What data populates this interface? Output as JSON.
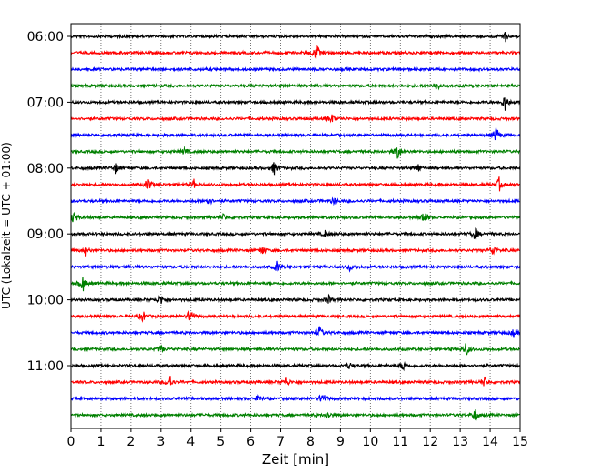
{
  "chart_data": {
    "type": "line",
    "title": "",
    "xlabel": "Zeit  [min]",
    "ylabel": "UTC (Lokalzeit = UTC + 01:00)",
    "xlim": [
      0,
      15
    ],
    "x_ticks": [
      "0",
      "1",
      "2",
      "3",
      "4",
      "5",
      "6",
      "7",
      "8",
      "9",
      "10",
      "11",
      "12",
      "13",
      "14",
      "15"
    ],
    "y_tick_labels": [
      "06:00",
      "07:00",
      "08:00",
      "09:00",
      "10:00",
      "11:00"
    ],
    "grid": "vertical-dotted",
    "trace_interval_min": 15,
    "trace_colors": [
      "#000000",
      "#ff0000",
      "#0000ff",
      "#008000"
    ],
    "traces": [
      {
        "start": "06:00",
        "color": "#000000",
        "events": [
          [
            14.5,
            6
          ]
        ]
      },
      {
        "start": "06:15",
        "color": "#ff0000",
        "events": [
          [
            8.2,
            10
          ]
        ]
      },
      {
        "start": "06:30",
        "color": "#0000ff",
        "events": []
      },
      {
        "start": "06:45",
        "color": "#008000",
        "events": [
          [
            12.2,
            6
          ]
        ]
      },
      {
        "start": "07:00",
        "color": "#000000",
        "events": [
          [
            14.5,
            10
          ]
        ]
      },
      {
        "start": "07:15",
        "color": "#ff0000",
        "events": [
          [
            8.7,
            6
          ]
        ]
      },
      {
        "start": "07:30",
        "color": "#0000ff",
        "events": [
          [
            14.2,
            9
          ]
        ]
      },
      {
        "start": "07:45",
        "color": "#008000",
        "events": [
          [
            10.9,
            10
          ],
          [
            3.8,
            5
          ]
        ]
      },
      {
        "start": "08:00",
        "color": "#000000",
        "events": [
          [
            6.8,
            9
          ],
          [
            1.5,
            6
          ],
          [
            11.6,
            5
          ]
        ]
      },
      {
        "start": "08:15",
        "color": "#ff0000",
        "events": [
          [
            2.6,
            8
          ],
          [
            4.1,
            5
          ],
          [
            14.3,
            8
          ]
        ]
      },
      {
        "start": "08:30",
        "color": "#0000ff",
        "events": [
          [
            4.6,
            4
          ],
          [
            8.8,
            4
          ]
        ]
      },
      {
        "start": "08:45",
        "color": "#008000",
        "events": [
          [
            11.8,
            9
          ],
          [
            0.1,
            8
          ],
          [
            5.1,
            4
          ]
        ]
      },
      {
        "start": "09:00",
        "color": "#000000",
        "events": [
          [
            13.5,
            8
          ],
          [
            8.5,
            4
          ]
        ]
      },
      {
        "start": "09:15",
        "color": "#ff0000",
        "events": [
          [
            14.1,
            7
          ],
          [
            0.5,
            5
          ],
          [
            6.4,
            5
          ]
        ]
      },
      {
        "start": "09:30",
        "color": "#0000ff",
        "events": [
          [
            6.9,
            6
          ],
          [
            9.3,
            4
          ]
        ]
      },
      {
        "start": "09:45",
        "color": "#008000",
        "events": [
          [
            0.4,
            9
          ]
        ]
      },
      {
        "start": "10:00",
        "color": "#000000",
        "events": [
          [
            3.0,
            6
          ],
          [
            8.6,
            5
          ]
        ]
      },
      {
        "start": "10:15",
        "color": "#ff0000",
        "events": [
          [
            4.0,
            9
          ],
          [
            2.4,
            6
          ]
        ]
      },
      {
        "start": "10:30",
        "color": "#0000ff",
        "events": [
          [
            8.3,
            7
          ],
          [
            14.8,
            5
          ]
        ]
      },
      {
        "start": "10:45",
        "color": "#008000",
        "events": [
          [
            13.2,
            8
          ],
          [
            3.0,
            4
          ]
        ]
      },
      {
        "start": "11:00",
        "color": "#000000",
        "events": [
          [
            11.1,
            6
          ],
          [
            9.3,
            4
          ]
        ]
      },
      {
        "start": "11:15",
        "color": "#ff0000",
        "events": [
          [
            3.3,
            8
          ],
          [
            13.8,
            6
          ],
          [
            7.2,
            5
          ]
        ]
      },
      {
        "start": "11:30",
        "color": "#0000ff",
        "events": [
          [
            8.4,
            8
          ],
          [
            6.3,
            4
          ]
        ]
      },
      {
        "start": "11:45",
        "color": "#008000",
        "events": [
          [
            13.5,
            8
          ],
          [
            8.6,
            4
          ]
        ]
      }
    ]
  }
}
